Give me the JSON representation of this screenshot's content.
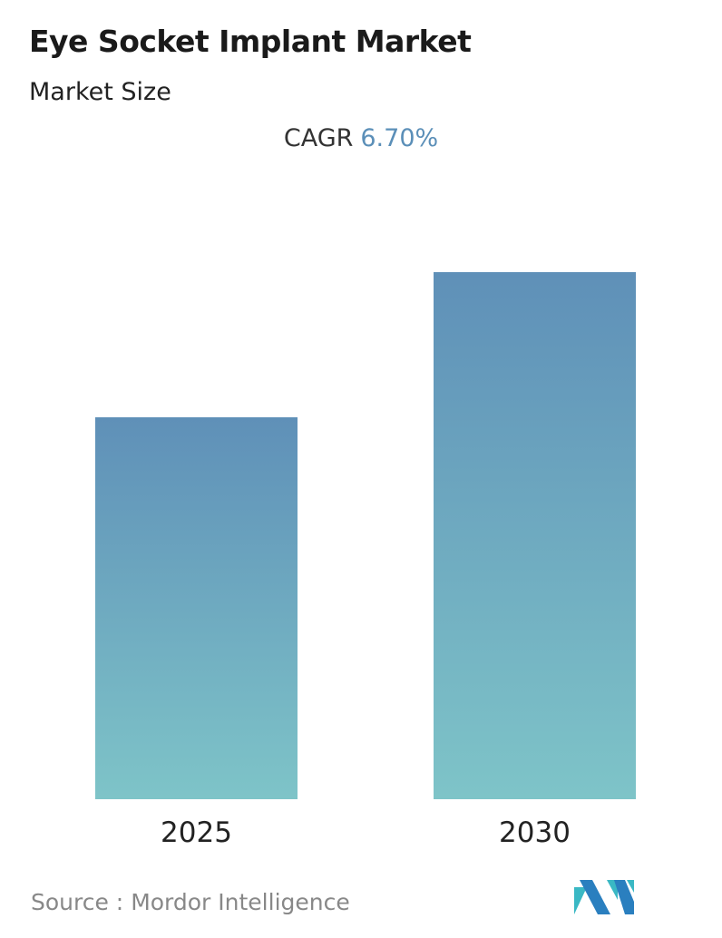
{
  "title": "Eye Socket Implant Market",
  "subtitle": "Market Size",
  "cagr": {
    "label": "CAGR",
    "value": "6.70%"
  },
  "source": {
    "label": "Source :",
    "value": "Mordor Intelligence"
  },
  "logo_text": "Mordor Intelligence",
  "chart_data": {
    "type": "bar",
    "categories": [
      "2025",
      "2030"
    ],
    "values": [
      1.0,
      1.38
    ],
    "ylabel": "",
    "xlabel": "",
    "grid": false,
    "colors": {
      "top": "#5f90b8",
      "bottom": "#7ec4c8"
    }
  }
}
